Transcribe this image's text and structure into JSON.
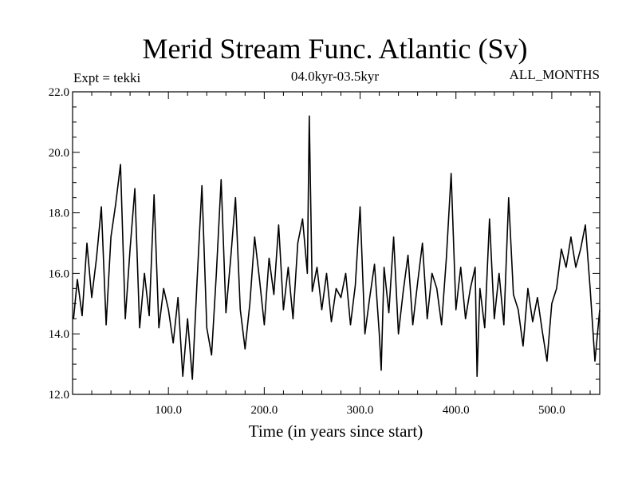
{
  "chart_data": {
    "type": "line",
    "title": "Merid Stream Func. Atlantic (Sv)",
    "subtitle": "04.0kyr-03.5kyr",
    "left_label": "Expt = tekki",
    "right_label": "ALL_MONTHS",
    "xlabel": "Time (in years since start)",
    "ylabel": "",
    "xlim": [
      0,
      550
    ],
    "ylim": [
      12.0,
      22.0
    ],
    "x_ticks": [
      100,
      200,
      300,
      400,
      500
    ],
    "x_tick_labels": [
      "100.0",
      "200.0",
      "300.0",
      "400.0",
      "500.0"
    ],
    "y_ticks": [
      12,
      14,
      16,
      18,
      20,
      22
    ],
    "y_tick_labels": [
      "12.0",
      "14.0",
      "16.0",
      "18.0",
      "20.0",
      "22.0"
    ],
    "series": [
      {
        "name": "Merid Stream Func. Atlantic",
        "color": "#000000",
        "x": [
          1,
          5,
          10,
          15,
          20,
          25,
          30,
          35,
          40,
          45,
          50,
          55,
          60,
          65,
          70,
          75,
          80,
          85,
          90,
          95,
          100,
          105,
          110,
          115,
          120,
          125,
          130,
          135,
          140,
          145,
          150,
          155,
          160,
          165,
          170,
          175,
          180,
          185,
          190,
          195,
          200,
          205,
          210,
          215,
          220,
          225,
          230,
          235,
          240,
          245,
          247,
          250,
          255,
          260,
          265,
          270,
          275,
          280,
          285,
          290,
          295,
          300,
          305,
          310,
          315,
          320,
          322,
          325,
          330,
          335,
          340,
          345,
          350,
          355,
          360,
          365,
          370,
          375,
          380,
          385,
          390,
          395,
          400,
          405,
          410,
          415,
          420,
          422,
          425,
          430,
          435,
          440,
          445,
          450,
          455,
          460,
          465,
          470,
          475,
          480,
          485,
          490,
          495,
          500,
          505,
          510,
          515,
          520,
          525,
          530,
          535,
          540,
          545,
          550
        ],
        "values": [
          14.5,
          15.8,
          14.6,
          17.0,
          15.2,
          16.5,
          18.2,
          14.3,
          17.2,
          18.3,
          19.6,
          14.5,
          16.8,
          18.8,
          14.2,
          16.0,
          14.6,
          18.6,
          14.2,
          15.5,
          14.8,
          13.7,
          15.2,
          12.6,
          14.5,
          12.5,
          15.8,
          18.9,
          14.2,
          13.3,
          16.0,
          19.1,
          14.7,
          16.5,
          18.5,
          14.8,
          13.5,
          15.0,
          17.2,
          15.8,
          14.3,
          16.5,
          15.3,
          17.6,
          14.8,
          16.2,
          14.5,
          17.0,
          17.8,
          16.0,
          21.2,
          15.4,
          16.2,
          14.8,
          16.0,
          14.4,
          15.5,
          15.2,
          16.0,
          14.3,
          15.6,
          18.2,
          14.0,
          15.2,
          16.3,
          14.0,
          12.8,
          16.2,
          14.7,
          17.2,
          14.0,
          15.4,
          16.6,
          14.3,
          15.7,
          17.0,
          14.5,
          16.0,
          15.5,
          14.3,
          16.5,
          19.3,
          14.8,
          16.2,
          14.5,
          15.5,
          16.2,
          12.6,
          15.5,
          14.2,
          17.8,
          14.5,
          16.0,
          14.3,
          18.5,
          15.3,
          14.8,
          13.6,
          15.5,
          14.4,
          15.2,
          14.1,
          13.1,
          15.0,
          15.5,
          16.8,
          16.2,
          17.2,
          16.2,
          16.8,
          17.6,
          15.5,
          13.1,
          14.8
        ]
      }
    ]
  }
}
